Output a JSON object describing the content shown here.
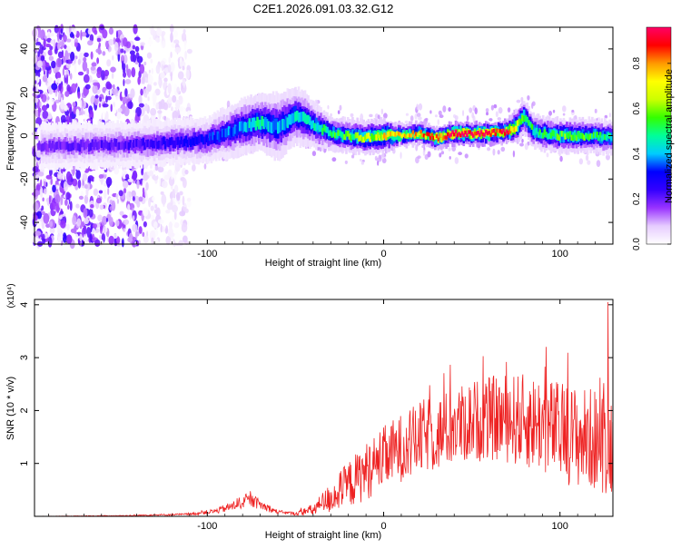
{
  "title": "C2E1.2026.091.03.32.G12",
  "chart_data": [
    {
      "type": "heatmap",
      "name": "spectrogram",
      "xlabel": "Height of straight line (km)",
      "ylabel": "Frequency (Hz)",
      "xlim": [
        -198,
        130
      ],
      "ylim": [
        -50,
        50
      ],
      "xticks": [
        -100,
        0,
        100
      ],
      "yticks": [
        -40,
        -20,
        0,
        20,
        40
      ],
      "colorbar": {
        "label": "Normalized spectral amplitude",
        "range": [
          0,
          0.96
        ],
        "ticks": [
          0.0,
          0.2,
          0.4,
          0.6,
          0.8
        ],
        "tick_labels": [
          "0.0",
          "0.2",
          "0.4",
          "0.6",
          "0.8"
        ],
        "colors": [
          "#ffffff",
          "#e6ccff",
          "#9933ff",
          "#3300ff",
          "#0000ff",
          "#00ccff",
          "#00ff99",
          "#33ff00",
          "#ccff00",
          "#ffff00",
          "#ff9900",
          "#ff0000",
          "#ff0066"
        ]
      },
      "ridge": {
        "x": [
          -198,
          -140,
          -120,
          -100,
          -80,
          -70,
          -60,
          -50,
          -45,
          -40,
          -30,
          -20,
          -10,
          0,
          10,
          20,
          30,
          40,
          50,
          60,
          70,
          75,
          80,
          85,
          90,
          100,
          110,
          120,
          130
        ],
        "y": [
          -5,
          -4,
          -3,
          -2,
          4,
          6,
          4,
          9,
          8,
          5,
          1,
          0,
          -1,
          0,
          0,
          1,
          -1,
          1,
          1,
          1,
          2,
          4,
          9,
          2,
          1,
          0,
          0,
          0,
          -1
        ],
        "width": [
          4,
          4,
          4,
          4,
          5,
          5,
          6,
          5,
          5,
          4,
          3,
          3,
          3,
          3,
          2,
          2,
          2,
          2,
          2,
          2,
          2,
          3,
          3,
          3,
          3,
          3,
          3,
          3,
          3
        ],
        "peak_amplitude": [
          0.18,
          0.22,
          0.26,
          0.3,
          0.4,
          0.45,
          0.4,
          0.42,
          0.42,
          0.45,
          0.5,
          0.55,
          0.6,
          0.7,
          0.7,
          0.75,
          0.8,
          0.92,
          0.95,
          0.95,
          0.85,
          0.7,
          0.55,
          0.5,
          0.5,
          0.55,
          0.55,
          0.5,
          0.45
        ]
      },
      "noise_region_x": [
        -198,
        -135
      ]
    },
    {
      "type": "line",
      "name": "snr",
      "xlabel": "Height of straight line (km)",
      "ylabel": "SNR (10 * v/v)",
      "scale_label": "(x10⁴)",
      "xlim": [
        -198,
        130
      ],
      "ylim": [
        0,
        4.1
      ],
      "xticks": [
        -100,
        0,
        100
      ],
      "yticks": [
        1,
        2,
        3,
        4
      ],
      "color": "#ee2222",
      "envelope": {
        "x": [
          -198,
          -150,
          -110,
          -95,
          -85,
          -80,
          -75,
          -70,
          -60,
          -50,
          -40,
          -30,
          -20,
          -10,
          0,
          10,
          20,
          25,
          30,
          40,
          50,
          60,
          70,
          80,
          90,
          100,
          110,
          120,
          128,
          130
        ],
        "mean": [
          0.0,
          0.01,
          0.04,
          0.1,
          0.2,
          0.28,
          0.3,
          0.22,
          0.08,
          0.05,
          0.12,
          0.35,
          0.6,
          0.85,
          1.1,
          1.3,
          1.45,
          1.55,
          1.55,
          1.7,
          1.8,
          1.85,
          1.85,
          1.8,
          1.75,
          1.6,
          1.5,
          1.45,
          1.4,
          1.4
        ],
        "spread": [
          0.0,
          0.01,
          0.02,
          0.05,
          0.1,
          0.13,
          0.12,
          0.1,
          0.04,
          0.03,
          0.12,
          0.3,
          0.45,
          0.55,
          0.6,
          0.65,
          0.7,
          0.72,
          0.72,
          0.75,
          0.78,
          0.8,
          0.85,
          0.9,
          0.92,
          0.95,
          0.97,
          0.98,
          1.0,
          1.0
        ]
      },
      "peak": {
        "x": 127,
        "y": 4.05
      }
    }
  ]
}
